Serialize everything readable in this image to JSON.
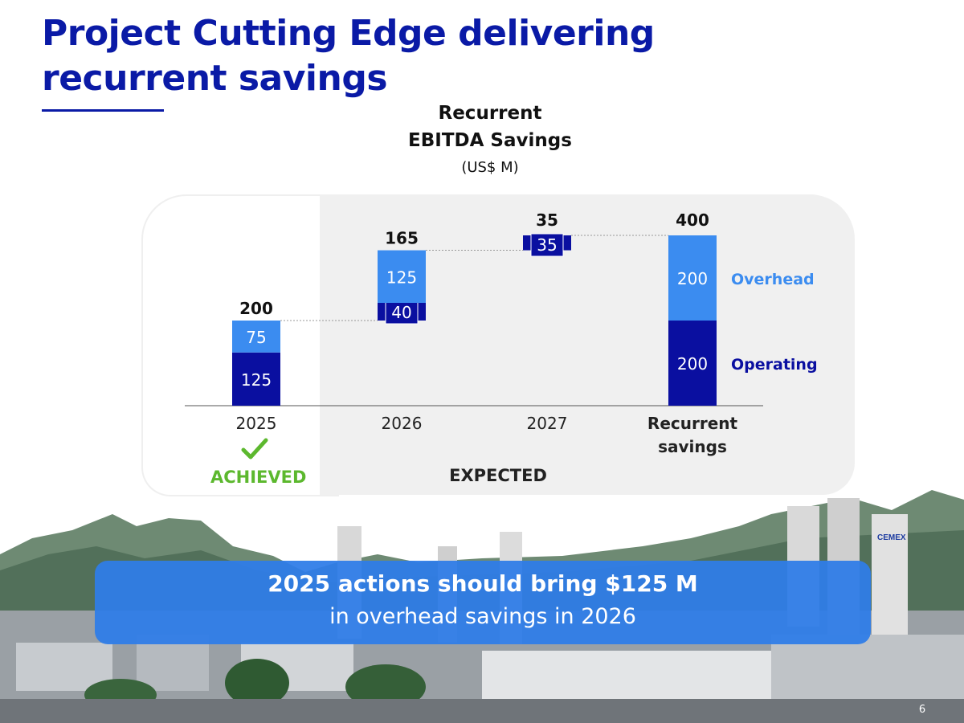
{
  "slide": {
    "title": "Project Cutting Edge delivering recurrent savings",
    "page_number": "6"
  },
  "callout": {
    "line1": "2025 actions should bring $125 M",
    "line2": "in overhead savings in 2026"
  },
  "status": {
    "achieved": "ACHIEVED",
    "expected": "EXPECTED"
  },
  "colors": {
    "overhead": "#3b8cf0",
    "operating": "#0a0fa0",
    "title": "#0a1aa6",
    "achieved": "#5cb82e"
  },
  "chart_data": {
    "type": "bar",
    "subtype": "waterfall",
    "title": "Recurrent EBITDA Savings",
    "title_lines": [
      "Recurrent",
      "EBITDA Savings"
    ],
    "unit": "(US$ M)",
    "categories": [
      "2025",
      "2026",
      "2027",
      "Recurrent savings"
    ],
    "category_lines": [
      [
        "2025"
      ],
      [
        "2026"
      ],
      [
        "2027"
      ],
      [
        "Recurrent",
        "savings"
      ]
    ],
    "series": [
      {
        "name": "Operating",
        "values": [
          125,
          40,
          35,
          200
        ]
      },
      {
        "name": "Overhead",
        "values": [
          75,
          125,
          0,
          200
        ]
      }
    ],
    "totals": [
      "200",
      "165",
      "35",
      "400"
    ],
    "ylim": [
      0,
      420
    ],
    "grid": false,
    "legend": "right"
  }
}
